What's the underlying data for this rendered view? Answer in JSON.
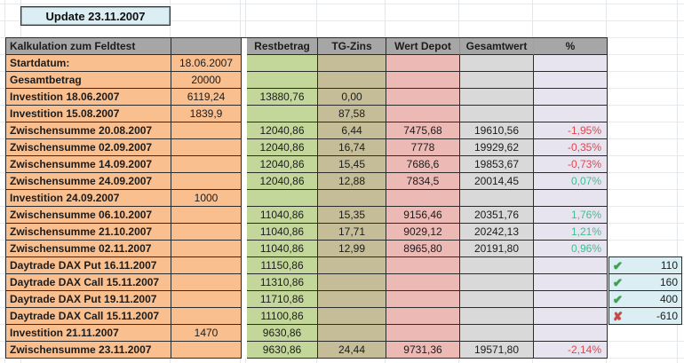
{
  "update_box": {
    "label": "Update 23.11.2007"
  },
  "table": {
    "title": "Kalkulation zum Feldtest",
    "columns": [
      "Restbetrag",
      "TG-Zins",
      "Wert Depot",
      "Gesamtwert",
      "%"
    ],
    "rows": [
      {
        "label": "Startdatum:",
        "amount": "18.06.2007",
        "restbetrag": "",
        "tg_zins": "",
        "wert_depot": "",
        "gesamtwert": "",
        "percent": "",
        "trend": ""
      },
      {
        "label": "Gesamtbetrag",
        "amount": "20000",
        "restbetrag": "",
        "tg_zins": "",
        "wert_depot": "",
        "gesamtwert": "",
        "percent": "",
        "trend": ""
      },
      {
        "label": "Investition 18.06.2007",
        "amount": "6119,24",
        "restbetrag": "13880,76",
        "tg_zins": "0,00",
        "wert_depot": "",
        "gesamtwert": "",
        "percent": "",
        "trend": ""
      },
      {
        "label": "Investition 15.08.2007",
        "amount": "1839,9",
        "restbetrag": "",
        "tg_zins": "87,58",
        "wert_depot": "",
        "gesamtwert": "",
        "percent": "",
        "trend": ""
      },
      {
        "label": "Zwischensumme 20.08.2007",
        "amount": "",
        "restbetrag": "12040,86",
        "tg_zins": "6,44",
        "wert_depot": "7475,68",
        "gesamtwert": "19610,56",
        "percent": "-1,95%",
        "trend": "down"
      },
      {
        "label": "Zwischensumme 02.09.2007",
        "amount": "",
        "restbetrag": "12040,86",
        "tg_zins": "16,74",
        "wert_depot": "7778",
        "gesamtwert": "19929,62",
        "percent": "-0,35%",
        "trend": "down"
      },
      {
        "label": "Zwischensumme 14.09.2007",
        "amount": "",
        "restbetrag": "12040,86",
        "tg_zins": "15,45",
        "wert_depot": "7686,6",
        "gesamtwert": "19853,67",
        "percent": "-0,73%",
        "trend": "down"
      },
      {
        "label": "Zwischensumme 24.09.2007",
        "amount": "",
        "restbetrag": "12040,86",
        "tg_zins": "12,88",
        "wert_depot": "7834,5",
        "gesamtwert": "20014,45",
        "percent": "0,07%",
        "trend": "up"
      },
      {
        "label": "Investition 24.09.2007",
        "amount": "1000",
        "restbetrag": "",
        "tg_zins": "",
        "wert_depot": "",
        "gesamtwert": "",
        "percent": "",
        "trend": ""
      },
      {
        "label": "Zwischensumme 06.10.2007",
        "amount": "",
        "restbetrag": "11040,86",
        "tg_zins": "15,35",
        "wert_depot": "9156,46",
        "gesamtwert": "20351,76",
        "percent": "1,76%",
        "trend": "up"
      },
      {
        "label": "Zwischensumme 21.10.2007",
        "amount": "",
        "restbetrag": "11040,86",
        "tg_zins": "17,71",
        "wert_depot": "9029,12",
        "gesamtwert": "20242,13",
        "percent": "1,21%",
        "trend": "up"
      },
      {
        "label": "Zwischensumme 02.11.2007",
        "amount": "",
        "restbetrag": "11040,86",
        "tg_zins": "12,99",
        "wert_depot": "8965,80",
        "gesamtwert": "20191,80",
        "percent": "0,96%",
        "trend": "up"
      },
      {
        "label": "Daytrade DAX Put 16.11.2007",
        "amount": "",
        "restbetrag": "11150,86",
        "tg_zins": "",
        "wert_depot": "",
        "gesamtwert": "",
        "percent": "",
        "trend": ""
      },
      {
        "label": "Daytrade DAX Call 15.11.2007",
        "amount": "",
        "restbetrag": "11310,86",
        "tg_zins": "",
        "wert_depot": "",
        "gesamtwert": "",
        "percent": "",
        "trend": ""
      },
      {
        "label": "Daytrade DAX Put 19.11.2007",
        "amount": "",
        "restbetrag": "11710,86",
        "tg_zins": "",
        "wert_depot": "",
        "gesamtwert": "",
        "percent": "",
        "trend": ""
      },
      {
        "label": "Daytrade DAX Call 15.11.2007",
        "amount": "",
        "restbetrag": "11100,86",
        "tg_zins": "",
        "wert_depot": "",
        "gesamtwert": "",
        "percent": "",
        "trend": ""
      },
      {
        "label": "Investition 21.11.2007",
        "amount": "1470",
        "restbetrag": "9630,86",
        "tg_zins": "",
        "wert_depot": "",
        "gesamtwert": "",
        "percent": "",
        "trend": ""
      },
      {
        "label": "Zwischensumme 23.11.2007",
        "amount": "",
        "restbetrag": "9630,86",
        "tg_zins": "24,44",
        "wert_depot": "9731,36",
        "gesamtwert": "19571,80",
        "percent": "-2,14%",
        "trend": "down"
      }
    ]
  },
  "trade_results": {
    "items": [
      {
        "status": "check",
        "value": "110"
      },
      {
        "status": "check",
        "value": "160"
      },
      {
        "status": "check",
        "value": "400"
      },
      {
        "status": "cross",
        "value": "-610"
      }
    ]
  },
  "icons": {
    "check": "✔",
    "cross": "✘"
  },
  "colors": {
    "accent_blue": "#DAEEF3",
    "label_orange": "#FABF8F",
    "restbetrag_green": "#C4D79B",
    "tgzins_olive": "#C4BD97",
    "wertdepot_pink": "#ECB9B5",
    "gesamtwert_gray": "#D9D9D9",
    "percent_lavender": "#E7E3EF",
    "header_gray": "#A6A6A6",
    "negative_red": "#E0474D",
    "positive_green": "#43BD92",
    "check_green": "#3BA24B",
    "cross_red": "#C84743"
  }
}
